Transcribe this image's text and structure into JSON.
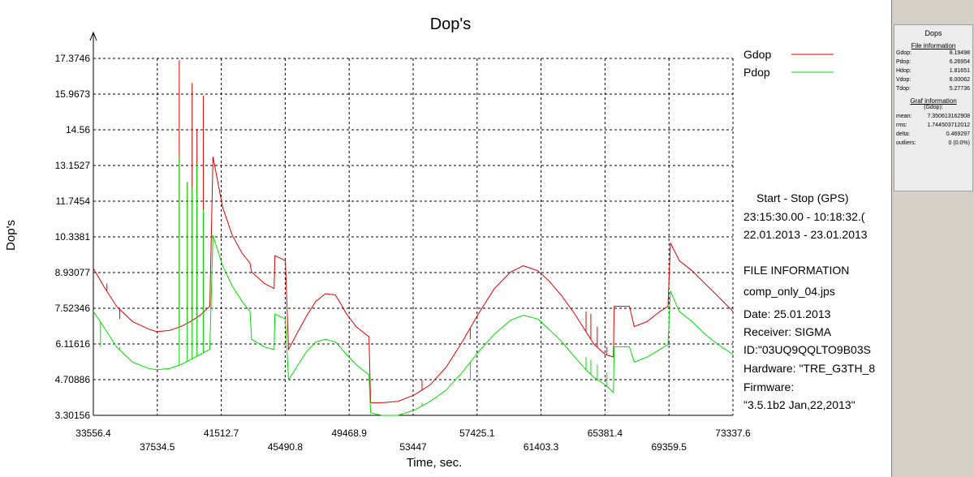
{
  "chart_data": {
    "type": "line",
    "title": "Dop's",
    "xlabel": "Time, sec.",
    "ylabel": "Dop's",
    "xlim": [
      33556.4,
      73337.6
    ],
    "ylim": [
      3.30156,
      17.3746
    ],
    "xticks": [
      "33556.4",
      "37534.5",
      "41512.7",
      "45490.8",
      "49468.9",
      "53447",
      "57425.1",
      "61403.3",
      "65381.4",
      "69359.5",
      "73337.6"
    ],
    "yticks": [
      "3.30156",
      "4.70886",
      "6.11616",
      "7.52346",
      "8.93077",
      "10.3381",
      "11.7454",
      "13.1527",
      "14.56",
      "15.9673",
      "17.3746"
    ],
    "grid": true,
    "legend_position": "top-right",
    "series": [
      {
        "name": "Gdop",
        "color": "#e00000",
        "points": [
          [
            33556,
            9.1
          ],
          [
            34200,
            8.4
          ],
          [
            35000,
            7.6
          ],
          [
            36000,
            7.0
          ],
          [
            37000,
            6.7
          ],
          [
            37500,
            6.6
          ],
          [
            38300,
            6.65
          ],
          [
            39000,
            6.8
          ],
          [
            39600,
            7.0
          ],
          [
            40200,
            7.25
          ],
          [
            40800,
            7.6
          ],
          [
            41000,
            13.5
          ],
          [
            41600,
            11.5
          ],
          [
            42200,
            10.4
          ],
          [
            42800,
            9.7
          ],
          [
            43300,
            9.3
          ],
          [
            43400,
            8.95
          ],
          [
            44200,
            8.5
          ],
          [
            44800,
            8.3
          ],
          [
            44850,
            9.6
          ],
          [
            45500,
            9.4
          ],
          [
            45700,
            5.9
          ],
          [
            46200,
            6.5
          ],
          [
            46800,
            7.2
          ],
          [
            47400,
            7.8
          ],
          [
            48000,
            8.1
          ],
          [
            48600,
            8.05
          ],
          [
            48900,
            7.75
          ],
          [
            49300,
            7.3
          ],
          [
            49900,
            6.8
          ],
          [
            50700,
            6.4
          ],
          [
            50800,
            3.8
          ],
          [
            51500,
            3.8
          ],
          [
            52500,
            3.85
          ],
          [
            53500,
            4.1
          ],
          [
            54500,
            4.5
          ],
          [
            55500,
            5.2
          ],
          [
            56500,
            6.2
          ],
          [
            57500,
            7.3
          ],
          [
            58500,
            8.3
          ],
          [
            59500,
            8.95
          ],
          [
            60300,
            9.2
          ],
          [
            61200,
            9.0
          ],
          [
            61900,
            8.6
          ],
          [
            62700,
            8.0
          ],
          [
            63500,
            7.3
          ],
          [
            64200,
            6.6
          ],
          [
            64700,
            6.1
          ],
          [
            65400,
            5.7
          ],
          [
            65900,
            5.6
          ],
          [
            65950,
            7.6
          ],
          [
            66900,
            7.6
          ],
          [
            67200,
            6.8
          ],
          [
            68000,
            7.0
          ],
          [
            68800,
            7.4
          ],
          [
            69300,
            7.6
          ],
          [
            69450,
            10.1
          ],
          [
            70000,
            9.4
          ],
          [
            70800,
            9.0
          ],
          [
            71600,
            8.5
          ],
          [
            72400,
            8.0
          ],
          [
            73337,
            7.4
          ]
        ],
        "spikes": [
          [
            34400,
            8.5
          ],
          [
            35200,
            7.1
          ],
          [
            38900,
            17.3
          ],
          [
            39400,
            12.5
          ],
          [
            39700,
            16.4
          ],
          [
            40000,
            14.6
          ],
          [
            40400,
            15.9
          ],
          [
            54000,
            4.7
          ],
          [
            57000,
            6.3
          ],
          [
            64200,
            7.4
          ],
          [
            64500,
            7.3
          ],
          [
            64900,
            6.8
          ],
          [
            65500,
            6.0
          ]
        ]
      },
      {
        "name": "Pdop",
        "color": "#00dd00",
        "points": [
          [
            33556,
            7.4
          ],
          [
            34200,
            6.8
          ],
          [
            35000,
            6.0
          ],
          [
            36000,
            5.4
          ],
          [
            37000,
            5.15
          ],
          [
            37500,
            5.1
          ],
          [
            38300,
            5.15
          ],
          [
            39000,
            5.3
          ],
          [
            39600,
            5.5
          ],
          [
            40200,
            5.7
          ],
          [
            40800,
            5.9
          ],
          [
            41000,
            10.4
          ],
          [
            41600,
            9.2
          ],
          [
            42200,
            8.4
          ],
          [
            42800,
            7.8
          ],
          [
            43300,
            7.4
          ],
          [
            43400,
            6.3
          ],
          [
            44200,
            6.0
          ],
          [
            44800,
            5.9
          ],
          [
            44850,
            7.3
          ],
          [
            45500,
            7.1
          ],
          [
            45700,
            4.7
          ],
          [
            46200,
            5.2
          ],
          [
            46800,
            5.8
          ],
          [
            47400,
            6.2
          ],
          [
            48000,
            6.3
          ],
          [
            48600,
            6.2
          ],
          [
            48900,
            6.0
          ],
          [
            49300,
            5.7
          ],
          [
            49900,
            5.3
          ],
          [
            50700,
            4.9
          ],
          [
            50800,
            3.4
          ],
          [
            51500,
            3.3
          ],
          [
            52500,
            3.3
          ],
          [
            53500,
            3.5
          ],
          [
            54500,
            3.85
          ],
          [
            55500,
            4.3
          ],
          [
            56500,
            5.0
          ],
          [
            57500,
            5.8
          ],
          [
            58500,
            6.5
          ],
          [
            59500,
            7.05
          ],
          [
            60300,
            7.25
          ],
          [
            61200,
            7.1
          ],
          [
            61900,
            6.7
          ],
          [
            62700,
            6.2
          ],
          [
            63500,
            5.6
          ],
          [
            64200,
            5.1
          ],
          [
            64700,
            4.8
          ],
          [
            65400,
            4.5
          ],
          [
            65900,
            4.2
          ],
          [
            65950,
            6.0
          ],
          [
            66900,
            6.0
          ],
          [
            67200,
            5.4
          ],
          [
            68000,
            5.6
          ],
          [
            68800,
            5.9
          ],
          [
            69300,
            6.1
          ],
          [
            69450,
            8.2
          ],
          [
            70000,
            7.4
          ],
          [
            70800,
            7.0
          ],
          [
            71600,
            6.5
          ],
          [
            72400,
            6.1
          ],
          [
            73337,
            5.7
          ]
        ],
        "spikes": [
          [
            34000,
            6.0
          ],
          [
            35200,
            6.0
          ],
          [
            38900,
            13.5
          ],
          [
            39400,
            12.5
          ],
          [
            39700,
            12.3
          ],
          [
            40000,
            13.2
          ],
          [
            40400,
            11.4
          ],
          [
            54000,
            3.8
          ],
          [
            57000,
            4.7
          ],
          [
            64200,
            5.6
          ],
          [
            64500,
            5.5
          ],
          [
            64900,
            5.3
          ],
          [
            65500,
            5.0
          ]
        ]
      }
    ],
    "info_lines": [
      "Start  -  Stop  (GPS)",
      "23:15:30.00 - 10:18:32.(",
      "22.01.2013 - 23.01.2013",
      "FILE INFORMATION",
      "comp_only_04.jps",
      "Date: 25.01.2013",
      "Receiver: SIGMA",
      "ID:\"03UQ9QQLTO9B03S",
      "Hardware:  \"TRE_G3TH_8",
      "Firmware:",
      "\"3.5.1b2 Jan,22,2013\""
    ]
  },
  "side_panel": {
    "title": "Dops",
    "file_section": "File information",
    "file_rows": [
      {
        "k": "Gdop:",
        "v": "8.19498"
      },
      {
        "k": "Pdop:",
        "v": "6.26954"
      },
      {
        "k": "Hdop:",
        "v": "1.81651"
      },
      {
        "k": "Vdop:",
        "v": "6.00062"
      },
      {
        "k": "Tdop:",
        "v": "5.27736"
      }
    ],
    "graf_section": "Graf information",
    "graf_sub": "(Gdop):",
    "graf_rows": [
      {
        "k": "mean:",
        "v": "7.350613162908"
      },
      {
        "k": "rms:",
        "v": "1.744503712012"
      },
      {
        "k": "delta:",
        "v": "0.469297"
      },
      {
        "k": "outliers:",
        "v": "0 (0.0%)"
      }
    ]
  }
}
